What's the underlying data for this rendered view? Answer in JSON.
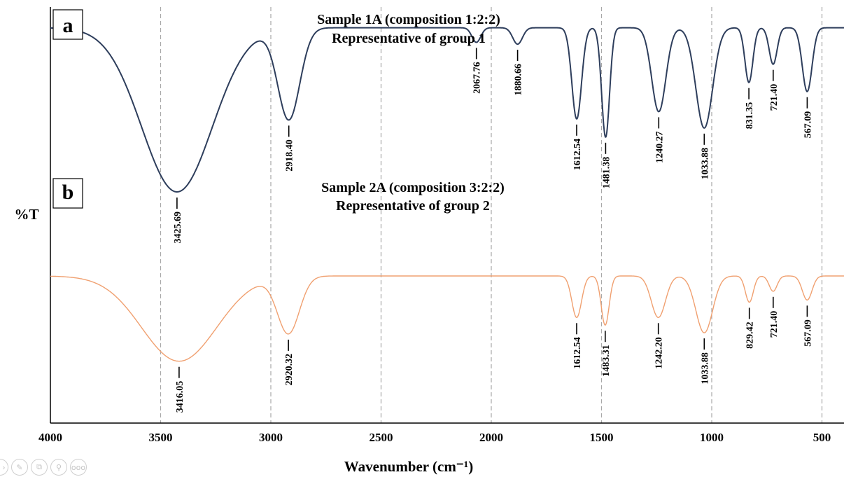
{
  "chart_data": {
    "type": "line",
    "xlabel": "Wavenumber (cm⁻¹)",
    "ylabel": "%T",
    "xlim": [
      4000,
      400
    ],
    "x_reversed": true,
    "grid": "vertical dashed",
    "x_ticks": [
      "4000",
      "3500",
      "3000",
      "2500",
      "2000",
      "1500",
      "1000",
      "500"
    ],
    "panels": [
      {
        "label": "a",
        "title_line1": "Sample 1A (composition 1:2:2)",
        "title_line2": "Representative of group 1",
        "color": "#2e3e5c",
        "baseline": 0.93,
        "peaks": [
          {
            "x": 3425.69,
            "depth": 0.9,
            "width": 160,
            "label": "3425.69"
          },
          {
            "x": 2918.4,
            "depth": 0.5,
            "width": 50,
            "label": "2918.40"
          },
          {
            "x": 2067.76,
            "depth": 0.08,
            "width": 20,
            "label": "2067.76"
          },
          {
            "x": 1880.66,
            "depth": 0.09,
            "width": 22,
            "label": "1880.66"
          },
          {
            "x": 1612.54,
            "depth": 0.5,
            "width": 22,
            "label": "1612.54"
          },
          {
            "x": 1481.38,
            "depth": 0.6,
            "width": 18,
            "label": "1481.38"
          },
          {
            "x": 1240.27,
            "depth": 0.46,
            "width": 32,
            "label": "1240.27"
          },
          {
            "x": 1033.88,
            "depth": 0.55,
            "width": 38,
            "label": "1033.88"
          },
          {
            "x": 831.35,
            "depth": 0.3,
            "width": 18,
            "label": "831.35"
          },
          {
            "x": 721.4,
            "depth": 0.2,
            "width": 18,
            "label": "721.40"
          },
          {
            "x": 567.09,
            "depth": 0.35,
            "width": 22,
            "label": "567.09"
          }
        ]
      },
      {
        "label": "b",
        "title_line1": "Sample 2A (composition 3:2:2)",
        "title_line2": "Representative of group 2",
        "color": "#f0a070",
        "baseline": 0.6,
        "peaks": [
          {
            "x": 3416.05,
            "depth": 0.78,
            "width": 170,
            "label": "3416.05"
          },
          {
            "x": 2920.32,
            "depth": 0.52,
            "width": 50,
            "label": "2920.32"
          },
          {
            "x": 1612.54,
            "depth": 0.38,
            "width": 22,
            "label": "1612.54"
          },
          {
            "x": 1483.31,
            "depth": 0.45,
            "width": 18,
            "label": "1483.31"
          },
          {
            "x": 1242.2,
            "depth": 0.38,
            "width": 32,
            "label": "1242.20"
          },
          {
            "x": 1033.88,
            "depth": 0.52,
            "width": 38,
            "label": "1033.88"
          },
          {
            "x": 829.42,
            "depth": 0.24,
            "width": 18,
            "label": "829.42"
          },
          {
            "x": 721.4,
            "depth": 0.14,
            "width": 18,
            "label": "721.40"
          },
          {
            "x": 567.09,
            "depth": 0.22,
            "width": 22,
            "label": "567.09"
          }
        ]
      }
    ]
  },
  "toolbar": {
    "icons": [
      "chevron-icon",
      "pen-icon",
      "copy-icon",
      "zoom-icon",
      "more-icon"
    ],
    "more_text": "ooo"
  }
}
